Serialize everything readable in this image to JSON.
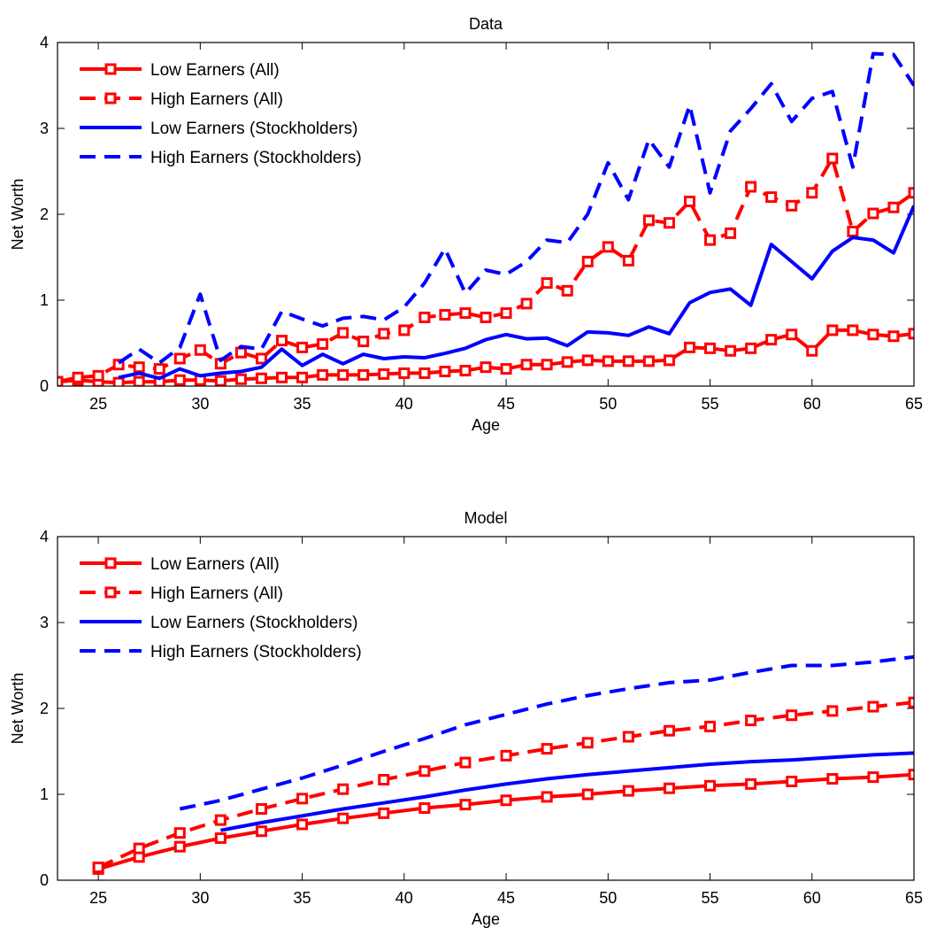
{
  "chart_data": [
    {
      "type": "line",
      "title": "Data",
      "xlabel": "Age",
      "ylabel": "Net Worth",
      "xlim": [
        23,
        65
      ],
      "ylim": [
        0,
        4
      ],
      "xticks": [
        25,
        30,
        35,
        40,
        45,
        50,
        55,
        60,
        65
      ],
      "yticks": [
        0,
        1,
        2,
        3,
        4
      ],
      "grid": false,
      "legend_position": "top-left",
      "series": [
        {
          "name": "Low Earners (All)",
          "color": "#ff0000",
          "dash": "solid",
          "marker": "square",
          "x": [
            23,
            24,
            25,
            26,
            27,
            28,
            29,
            30,
            31,
            32,
            33,
            34,
            35,
            36,
            37,
            38,
            39,
            40,
            41,
            42,
            43,
            44,
            45,
            46,
            47,
            48,
            49,
            50,
            51,
            52,
            53,
            54,
            55,
            56,
            57,
            58,
            59,
            60,
            61,
            62,
            63,
            64,
            65
          ],
          "y": [
            0.05,
            0.07,
            0.05,
            0.04,
            0.05,
            0.05,
            0.07,
            0.07,
            0.06,
            0.08,
            0.09,
            0.1,
            0.1,
            0.13,
            0.13,
            0.13,
            0.14,
            0.15,
            0.15,
            0.17,
            0.18,
            0.22,
            0.2,
            0.25,
            0.25,
            0.28,
            0.3,
            0.29,
            0.29,
            0.29,
            0.3,
            0.45,
            0.44,
            0.41,
            0.44,
            0.54,
            0.6,
            0.41,
            0.65,
            0.65,
            0.6,
            0.58,
            0.61
          ]
        },
        {
          "name": "High Earners (All)",
          "color": "#ff0000",
          "dash": "dashed",
          "marker": "square",
          "x": [
            23,
            24,
            25,
            26,
            27,
            28,
            29,
            30,
            31,
            32,
            33,
            34,
            35,
            36,
            37,
            38,
            39,
            40,
            41,
            42,
            43,
            44,
            45,
            46,
            47,
            48,
            49,
            50,
            51,
            52,
            53,
            54,
            55,
            56,
            57,
            58,
            59,
            60,
            61,
            62,
            63,
            64,
            65
          ],
          "y": [
            0.05,
            0.1,
            0.12,
            0.25,
            0.22,
            0.2,
            0.32,
            0.42,
            0.26,
            0.39,
            0.32,
            0.53,
            0.45,
            0.49,
            0.62,
            0.52,
            0.61,
            0.65,
            0.8,
            0.83,
            0.85,
            0.8,
            0.85,
            0.96,
            1.2,
            1.11,
            1.45,
            1.62,
            1.46,
            1.93,
            1.9,
            2.15,
            1.7,
            1.78,
            2.32,
            2.2,
            2.1,
            2.25,
            2.65,
            1.8,
            2.01,
            2.08,
            2.25
          ]
        },
        {
          "name": "Low Earners (Stockholders)",
          "color": "#0000ff",
          "dash": "solid",
          "marker": "none",
          "x": [
            26,
            27,
            28,
            29,
            30,
            31,
            32,
            33,
            34,
            35,
            36,
            37,
            38,
            39,
            40,
            41,
            42,
            43,
            44,
            45,
            46,
            47,
            48,
            49,
            50,
            51,
            52,
            53,
            54,
            55,
            56,
            57,
            58,
            59,
            60,
            61,
            62,
            63,
            64,
            65
          ],
          "y": [
            0.1,
            0.15,
            0.09,
            0.2,
            0.12,
            0.15,
            0.17,
            0.22,
            0.43,
            0.24,
            0.37,
            0.26,
            0.37,
            0.32,
            0.34,
            0.33,
            0.38,
            0.44,
            0.54,
            0.6,
            0.55,
            0.56,
            0.47,
            0.63,
            0.62,
            0.59,
            0.69,
            0.61,
            0.97,
            1.09,
            1.13,
            0.94,
            1.65,
            1.45,
            1.25,
            1.57,
            1.73,
            1.7,
            1.55,
            2.1
          ]
        },
        {
          "name": "High Earners (Stockholders)",
          "color": "#0000ff",
          "dash": "dashed",
          "marker": "none",
          "x": [
            26,
            27,
            28,
            29,
            30,
            31,
            32,
            33,
            34,
            35,
            36,
            37,
            38,
            39,
            40,
            41,
            42,
            43,
            44,
            45,
            46,
            47,
            48,
            49,
            50,
            51,
            52,
            53,
            54,
            55,
            56,
            57,
            58,
            59,
            60,
            61,
            62,
            63,
            64,
            65
          ],
          "y": [
            0.27,
            0.43,
            0.27,
            0.45,
            1.07,
            0.3,
            0.46,
            0.43,
            0.87,
            0.78,
            0.7,
            0.79,
            0.81,
            0.77,
            0.92,
            1.2,
            1.6,
            1.08,
            1.35,
            1.3,
            1.45,
            1.7,
            1.67,
            2.0,
            2.6,
            2.17,
            2.87,
            2.55,
            3.27,
            2.25,
            2.97,
            3.23,
            3.52,
            3.08,
            3.35,
            3.43,
            2.55,
            3.87,
            3.86,
            3.5
          ]
        }
      ]
    },
    {
      "type": "line",
      "title": "Model",
      "xlabel": "Age",
      "ylabel": "Net Worth",
      "xlim": [
        23,
        65
      ],
      "ylim": [
        0,
        4
      ],
      "xticks": [
        25,
        30,
        35,
        40,
        45,
        50,
        55,
        60,
        65
      ],
      "yticks": [
        0,
        1,
        2,
        3,
        4
      ],
      "grid": false,
      "legend_position": "top-left",
      "series": [
        {
          "name": "Low Earners (All)",
          "color": "#ff0000",
          "dash": "solid",
          "marker": "square",
          "x": [
            25,
            27,
            29,
            31,
            33,
            35,
            37,
            39,
            41,
            43,
            45,
            47,
            49,
            51,
            53,
            55,
            57,
            59,
            61,
            63,
            65
          ],
          "y": [
            0.13,
            0.27,
            0.39,
            0.49,
            0.57,
            0.65,
            0.72,
            0.78,
            0.84,
            0.88,
            0.93,
            0.97,
            1.0,
            1.04,
            1.07,
            1.1,
            1.12,
            1.15,
            1.18,
            1.2,
            1.23
          ]
        },
        {
          "name": "High Earners (All)",
          "color": "#ff0000",
          "dash": "dashed",
          "marker": "square",
          "x": [
            25,
            27,
            29,
            31,
            33,
            35,
            37,
            39,
            41,
            43,
            45,
            47,
            49,
            51,
            53,
            55,
            57,
            59,
            61,
            63,
            65
          ],
          "y": [
            0.15,
            0.37,
            0.55,
            0.7,
            0.83,
            0.95,
            1.06,
            1.17,
            1.27,
            1.37,
            1.45,
            1.53,
            1.6,
            1.67,
            1.74,
            1.79,
            1.86,
            1.92,
            1.97,
            2.02,
            2.07
          ]
        },
        {
          "name": "Low Earners (Stockholders)",
          "color": "#0000ff",
          "dash": "solid",
          "marker": "none",
          "x": [
            31,
            33,
            35,
            37,
            39,
            41,
            43,
            45,
            47,
            49,
            51,
            53,
            55,
            57,
            59,
            61,
            63,
            65
          ],
          "y": [
            0.58,
            0.67,
            0.75,
            0.83,
            0.9,
            0.97,
            1.05,
            1.12,
            1.18,
            1.23,
            1.27,
            1.31,
            1.35,
            1.38,
            1.4,
            1.43,
            1.46,
            1.48
          ]
        },
        {
          "name": "High Earners (Stockholders)",
          "color": "#0000ff",
          "dash": "dashed",
          "marker": "none",
          "x": [
            29,
            31,
            33,
            35,
            37,
            39,
            41,
            43,
            45,
            47,
            49,
            51,
            53,
            55,
            57,
            59,
            61,
            63,
            65
          ],
          "y": [
            0.83,
            0.93,
            1.06,
            1.19,
            1.34,
            1.5,
            1.65,
            1.81,
            1.93,
            2.05,
            2.15,
            2.23,
            2.3,
            2.33,
            2.42,
            2.5,
            2.5,
            2.54,
            2.6
          ]
        }
      ]
    }
  ]
}
